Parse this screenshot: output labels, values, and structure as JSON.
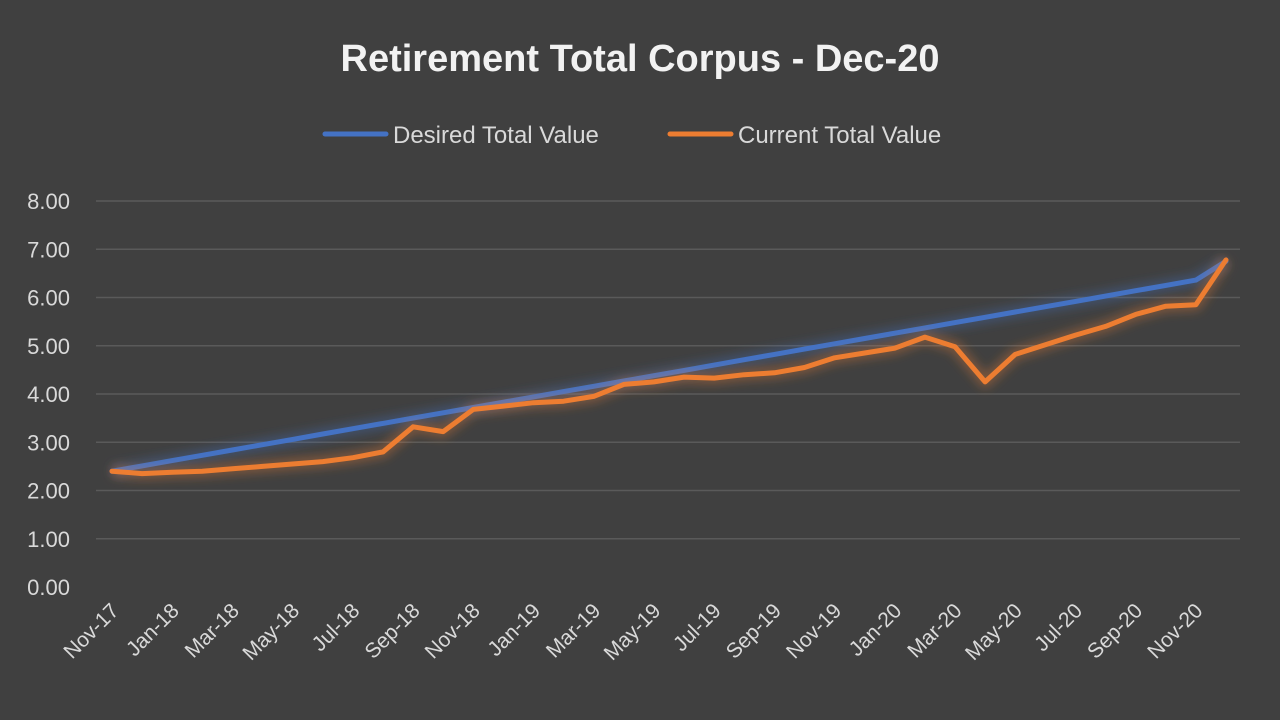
{
  "chart_data": {
    "type": "line",
    "title": "Retirement Total Corpus - Dec-20",
    "xlabel": "",
    "ylabel": "",
    "ylim": [
      0,
      8
    ],
    "yticks": [
      "0.00",
      "1.00",
      "2.00",
      "3.00",
      "4.00",
      "5.00",
      "6.00",
      "7.00",
      "8.00"
    ],
    "grid": true,
    "legend_position": "top",
    "x": [
      "Nov-17",
      "Dec-17",
      "Jan-18",
      "Feb-18",
      "Mar-18",
      "Apr-18",
      "May-18",
      "Jun-18",
      "Jul-18",
      "Aug-18",
      "Sep-18",
      "Oct-18",
      "Nov-18",
      "Dec-18",
      "Jan-19",
      "Feb-19",
      "Mar-19",
      "Apr-19",
      "May-19",
      "Jun-19",
      "Jul-19",
      "Aug-19",
      "Sep-19",
      "Oct-19",
      "Nov-19",
      "Dec-19",
      "Jan-20",
      "Feb-20",
      "Mar-20",
      "Apr-20",
      "May-20",
      "Jun-20",
      "Jul-20",
      "Aug-20",
      "Sep-20",
      "Oct-20",
      "Nov-20",
      "Dec-20"
    ],
    "x_tick_labels": [
      "Nov-17",
      "Jan-18",
      "Mar-18",
      "May-18",
      "Jul-18",
      "Sep-18",
      "Nov-18",
      "Jan-19",
      "Mar-19",
      "May-19",
      "Jul-19",
      "Sep-19",
      "Nov-19",
      "Jan-20",
      "Mar-20",
      "May-20",
      "Jul-20",
      "Sep-20",
      "Nov-20"
    ],
    "series": [
      {
        "name": "Desired Total Value",
        "color": "#4472c4",
        "values": [
          2.4,
          2.51,
          2.62,
          2.73,
          2.84,
          2.95,
          3.06,
          3.17,
          3.28,
          3.39,
          3.5,
          3.61,
          3.72,
          3.83,
          3.94,
          4.05,
          4.16,
          4.27,
          4.38,
          4.49,
          4.6,
          4.71,
          4.82,
          4.93,
          5.04,
          5.15,
          5.26,
          5.37,
          5.48,
          5.59,
          5.7,
          5.81,
          5.92,
          6.03,
          6.14,
          6.25,
          6.36,
          6.75
        ]
      },
      {
        "name": "Current Total Value",
        "color": "#ed7d31",
        "values": [
          2.4,
          2.35,
          2.38,
          2.4,
          2.45,
          2.5,
          2.55,
          2.6,
          2.68,
          2.8,
          3.32,
          3.22,
          3.68,
          3.75,
          3.82,
          3.85,
          3.95,
          4.2,
          4.25,
          4.35,
          4.33,
          4.4,
          4.44,
          4.55,
          4.75,
          4.85,
          4.95,
          5.18,
          4.98,
          4.25,
          4.82,
          5.02,
          5.22,
          5.4,
          5.65,
          5.82,
          5.85,
          6.78
        ]
      }
    ]
  }
}
